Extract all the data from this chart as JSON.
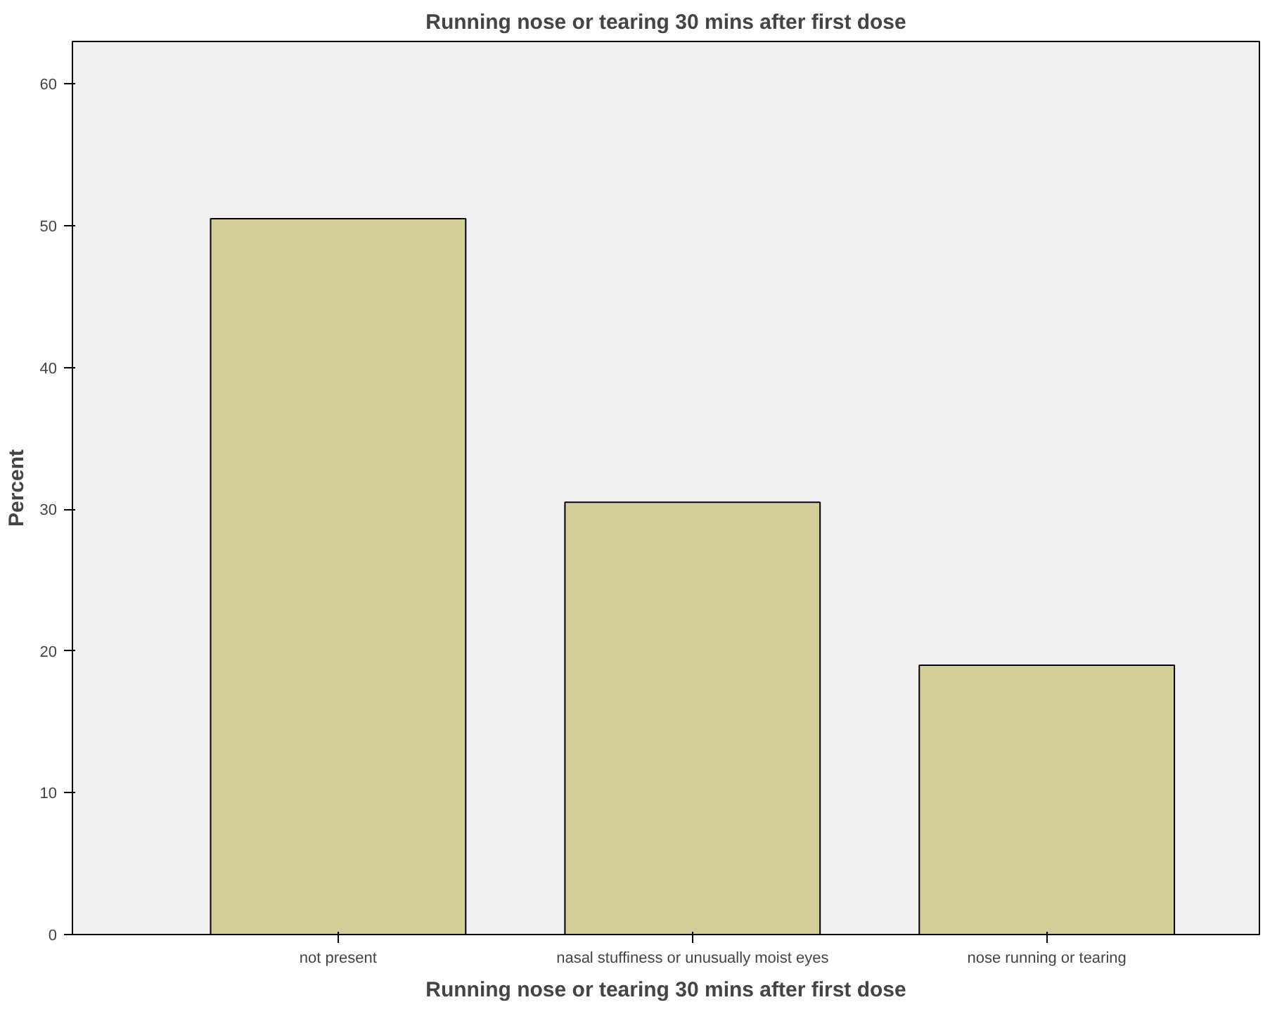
{
  "chart_data": {
    "type": "bar",
    "title": "Running nose or tearing 30 mins after first dose",
    "xlabel": "Running nose or tearing 30 mins after first dose",
    "ylabel": "Percent",
    "categories": [
      "not present",
      "nasal stuffiness or unusually moist eyes",
      "nose running or tearing"
    ],
    "values": [
      50.5,
      30.5,
      19.0
    ],
    "color": "#d3cd97",
    "ylim": [
      0,
      63
    ],
    "yticks": [
      0,
      10,
      20,
      30,
      40,
      50,
      60
    ],
    "grid": false
  }
}
